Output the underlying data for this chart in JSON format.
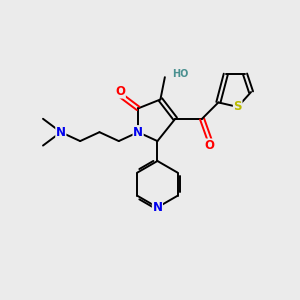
{
  "bg_color": "#ebebeb",
  "fig_size": [
    3.0,
    3.0
  ],
  "dpi": 100,
  "bond_color": "#000000",
  "bond_lw": 1.4,
  "atom_colors": {
    "N": "#0000ee",
    "O": "#ff0000",
    "S": "#bbbb00",
    "H_teal": "#4a9090",
    "C": "#000000"
  },
  "font_size_large": 8.5,
  "font_size_small": 7.0,
  "font_size_tiny": 6.5
}
